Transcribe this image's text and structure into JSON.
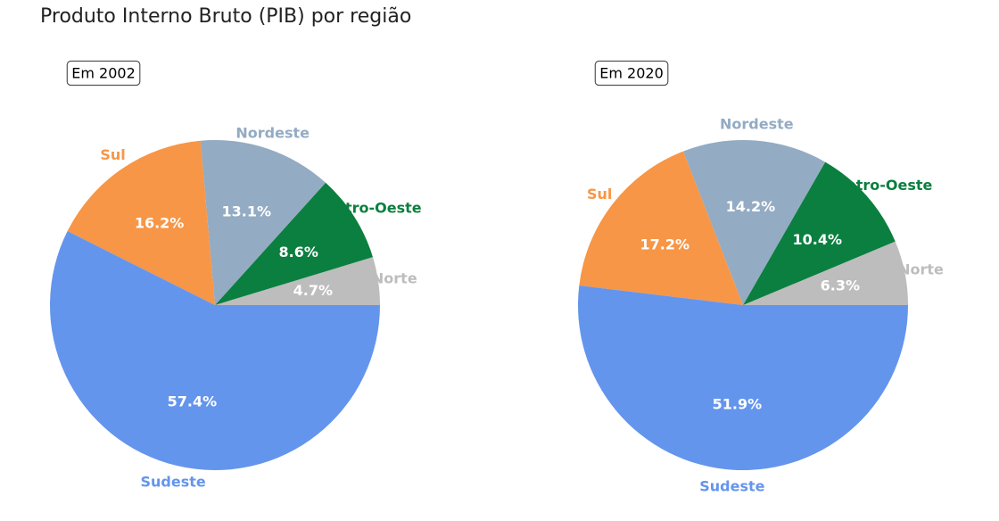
{
  "title": "Produto Interno Bruto (PIB) por região",
  "colors": {
    "Sudeste": "#6495ED",
    "Sul": "#F79646",
    "Nordeste": "#93ABC3",
    "Centro-Oeste": "#0B7F3F",
    "Norte": "#BDBDBD"
  },
  "chart_data": [
    {
      "type": "pie",
      "title": "Em 2002",
      "categories": [
        "Norte",
        "Centro-Oeste",
        "Nordeste",
        "Sul",
        "Sudeste"
      ],
      "values": [
        4.7,
        8.6,
        13.1,
        16.2,
        57.4
      ],
      "labels": [
        "4.7%",
        "8.6%",
        "13.1%",
        "16.2%",
        "57.4%"
      ]
    },
    {
      "type": "pie",
      "title": "Em 2020",
      "categories": [
        "Norte",
        "Centro-Oeste",
        "Nordeste",
        "Sul",
        "Sudeste"
      ],
      "values": [
        6.3,
        10.4,
        14.2,
        17.2,
        51.9
      ],
      "labels": [
        "6.3%",
        "10.4%",
        "14.2%",
        "17.2%",
        "51.9%"
      ]
    }
  ]
}
